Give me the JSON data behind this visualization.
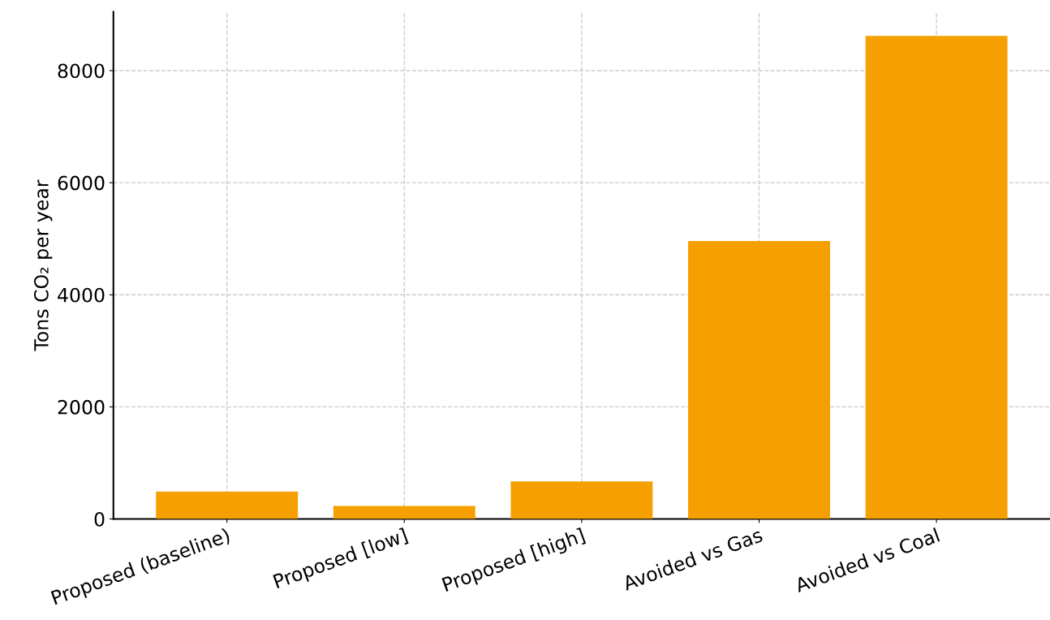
{
  "chart_data": {
    "type": "bar",
    "ylabel": "Tons CO₂ per year",
    "categories": [
      "Proposed (baseline)",
      "Proposed [low]",
      "Proposed [high]",
      "Avoided vs Gas",
      "Avoided vs Coal"
    ],
    "values": [
      490,
      230,
      670,
      4960,
      8620
    ],
    "color": "#f59f00",
    "ylim": [
      0,
      9050
    ],
    "yticks": [
      0,
      2000,
      4000,
      6000,
      8000
    ],
    "grid": true,
    "line_style": "dashed"
  }
}
